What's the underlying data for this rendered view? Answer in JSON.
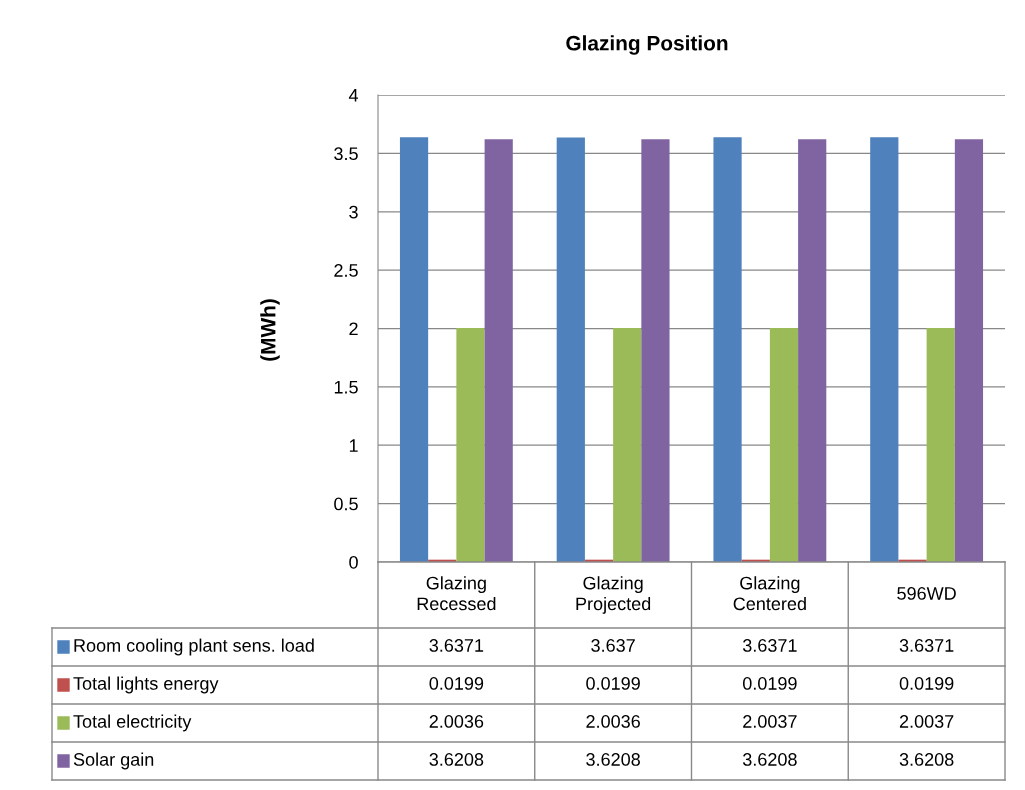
{
  "chart_data": {
    "type": "bar",
    "title": "Glazing Position",
    "ylabel": "(MWh)",
    "categories": [
      "Glazing\nRecessed",
      "Glazing\nProjected",
      "Glazing\nCentered",
      "596WD"
    ],
    "series": [
      {
        "name": "Room cooling plant sens. load",
        "color": "#4f81bd",
        "values": [
          3.6371,
          3.637,
          3.6371,
          3.6371
        ]
      },
      {
        "name": "Total lights energy",
        "color": "#c0504d",
        "values": [
          0.0199,
          0.0199,
          0.0199,
          0.0199
        ]
      },
      {
        "name": "Total electricity",
        "color": "#9bbb59",
        "values": [
          2.0036,
          2.0036,
          2.0037,
          2.0037
        ]
      },
      {
        "name": "Solar gain",
        "color": "#8064a2",
        "values": [
          3.6208,
          3.6208,
          3.6208,
          3.6208
        ]
      }
    ],
    "ylim": [
      0,
      4
    ],
    "yticks": [
      0,
      0.5,
      1,
      1.5,
      2,
      2.5,
      3,
      3.5,
      4
    ],
    "grid": "y",
    "data_labels": true,
    "legend": "bottom left"
  }
}
